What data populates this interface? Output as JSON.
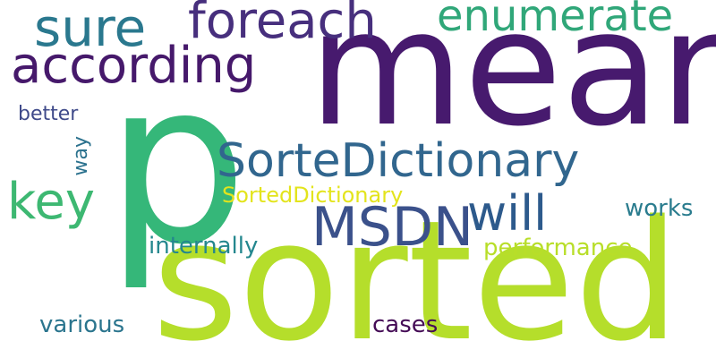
{
  "word_cloud": {
    "background_color": "#ffffff",
    "words": [
      {
        "id": "mean",
        "text": "mean",
        "color": "#471a6e"
      },
      {
        "id": "p",
        "text": "p",
        "color": "#35b779"
      },
      {
        "id": "sorted",
        "text": "sorted",
        "color": "#b5de2b"
      },
      {
        "id": "sure",
        "text": "sure",
        "color": "#2a788e"
      },
      {
        "id": "foreach",
        "text": "foreach",
        "color": "#472f7d"
      },
      {
        "id": "enumerate",
        "text": "enumerate",
        "color": "#30a779"
      },
      {
        "id": "according",
        "text": "according",
        "color": "#46196b"
      },
      {
        "id": "better",
        "text": "better",
        "color": "#3f4a8a"
      },
      {
        "id": "way",
        "text": "way",
        "color": "#2c728e"
      },
      {
        "id": "SorteDictionary",
        "text": "SorteDictionary",
        "color": "#31668e"
      },
      {
        "id": "key",
        "text": "key",
        "color": "#3db872"
      },
      {
        "id": "SortedDictionary",
        "text": "SortedDictionary",
        "color": "#e3e41c"
      },
      {
        "id": "will",
        "text": "will",
        "color": "#2d5a8c"
      },
      {
        "id": "works",
        "text": "works",
        "color": "#2a7c8e"
      },
      {
        "id": "MSDN",
        "text": "MSDN",
        "color": "#3b518b"
      },
      {
        "id": "internally",
        "text": "internally",
        "color": "#24878e"
      },
      {
        "id": "performance",
        "text": "performance",
        "color": "#b8de29"
      },
      {
        "id": "various",
        "text": "various",
        "color": "#2b758e"
      },
      {
        "id": "cases",
        "text": "cases",
        "color": "#450c56"
      }
    ]
  }
}
